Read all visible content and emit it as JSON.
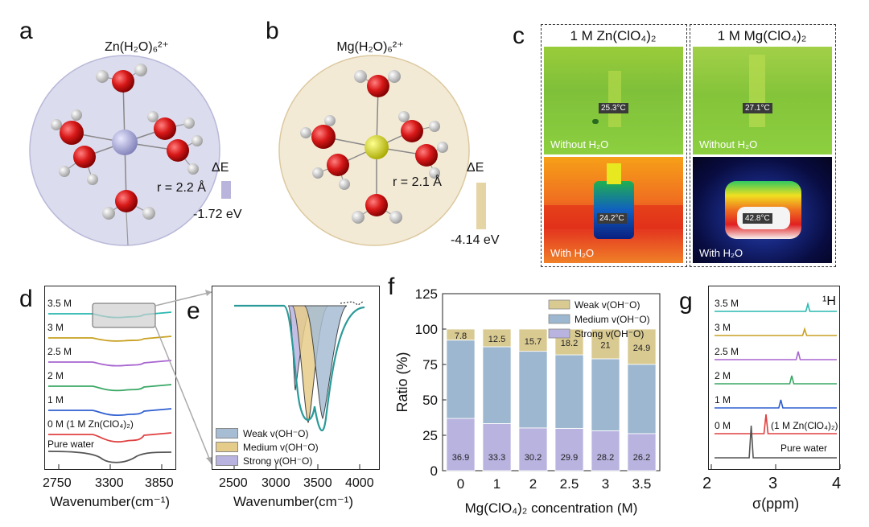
{
  "panel_letters": [
    "a",
    "b",
    "c",
    "d",
    "e",
    "f",
    "g"
  ],
  "panel_a": {
    "title": "Zn(H₂O)₆²⁺",
    "radius": "r = 2.2 Å",
    "delta_label": "ΔE",
    "delta_value": "-1.72 eV",
    "sphere_color": "#dcdcef",
    "center_color": "#b3b3e0",
    "bar_color": "#b8b4dc"
  },
  "panel_b": {
    "title": "Mg(H₂O)₆²⁺",
    "radius": "r = 2.1 Å",
    "delta_label": "ΔE",
    "delta_value": "-4.14 eV",
    "sphere_color": "#f3ead6",
    "center_color": "#e2e21c",
    "bar_color": "#e5d4a4"
  },
  "panel_c": {
    "col_titles": [
      "1 M Zn(ClO₄)₂",
      "1 M Mg(ClO₄)₂"
    ],
    "cells": [
      {
        "temp": "25.3°C",
        "caption": "Without H₂O"
      },
      {
        "temp": "27.1°C",
        "caption": "Without H₂O"
      },
      {
        "temp": "24.2°C",
        "caption": "With H₂O"
      },
      {
        "temp": "42.8°C",
        "caption": "With H₂O"
      }
    ]
  },
  "panel_d": {
    "xlabel": "Wavenumber(cm⁻¹)",
    "xticks": [
      "2750",
      "3300",
      "3850"
    ],
    "curves": [
      {
        "label": "3.5 M",
        "color": "#2ab8b0"
      },
      {
        "label": "3 M",
        "color": "#c8a020"
      },
      {
        "label": "2.5 M",
        "color": "#a865d0"
      },
      {
        "label": "2 M",
        "color": "#3aa865"
      },
      {
        "label": "1 M",
        "color": "#2f5fd0"
      },
      {
        "label": "0 M (1 M Zn(ClO₄)₂)",
        "color": "#e04040"
      },
      {
        "label": "Pure water",
        "color": "#555555"
      }
    ]
  },
  "panel_e": {
    "xlabel": "Wavenumber(cm⁻¹)",
    "xticks": [
      "2500",
      "3000",
      "3500",
      "4000"
    ],
    "legend": [
      {
        "label": "Weak v(OH⁻O)",
        "color": "#a7bdd4"
      },
      {
        "label": "Medium v(OH⁻O)",
        "color": "#e6cc8a"
      },
      {
        "label": "Strong v(OH⁻O)",
        "color": "#b9b3e0"
      }
    ]
  },
  "chart_data": {
    "type": "bar",
    "stacked": true,
    "xlabel": "Mg(ClO₄)₂ concentration (M)",
    "ylabel": "Ratio (%)",
    "ylim": [
      0,
      125
    ],
    "yticks": [
      "0",
      "25",
      "50",
      "75",
      "100",
      "125"
    ],
    "categories": [
      "0",
      "1",
      "2",
      "2.5",
      "3",
      "3.5"
    ],
    "series": [
      {
        "name": "Strong v(OH⁻O)",
        "color": "#b9b3e0",
        "values": [
          36.9,
          33.3,
          30.2,
          29.9,
          28.2,
          26.2
        ],
        "labels": [
          "36.9",
          "33.3",
          "30.2",
          "29.9",
          "28.2",
          "26.2"
        ]
      },
      {
        "name": "Medium v(OH⁻O)",
        "color": "#9cb7cf",
        "values": [
          55.3,
          54.2,
          54.1,
          51.9,
          50.8,
          48.9
        ],
        "labels": []
      },
      {
        "name": "Weak v(OH⁻O)",
        "color": "#d9ca92",
        "values": [
          7.8,
          12.5,
          15.7,
          18.2,
          21,
          24.9
        ],
        "labels": [
          "7.8",
          "12.5",
          "15.7",
          "18.2",
          "21",
          "24.9"
        ]
      }
    ],
    "legend_order": [
      2,
      1,
      0
    ],
    "legend_position": "top-right"
  },
  "panel_g": {
    "xlabel": "σ(ppm)",
    "xticks": [
      "2",
      "3",
      "4"
    ],
    "nucleus": "¹H",
    "curves": [
      {
        "label": "3.5 M",
        "color": "#2ab8b0",
        "peak": 3.5
      },
      {
        "label": "3 M",
        "color": "#c8a020",
        "peak": 3.45
      },
      {
        "label": "2.5 M",
        "color": "#a865d0",
        "peak": 3.35
      },
      {
        "label": "2 M",
        "color": "#3aa865",
        "peak": 3.25
      },
      {
        "label": "1 M",
        "color": "#2f5fd0",
        "peak": 3.08
      },
      {
        "label": "0 M",
        "color": "#e04040",
        "peak": 2.85
      },
      {
        "label": "Pure water",
        "color": "#555555",
        "peak": 2.62
      }
    ],
    "zn_note": "(1 M Zn(ClO₄)₂)"
  }
}
